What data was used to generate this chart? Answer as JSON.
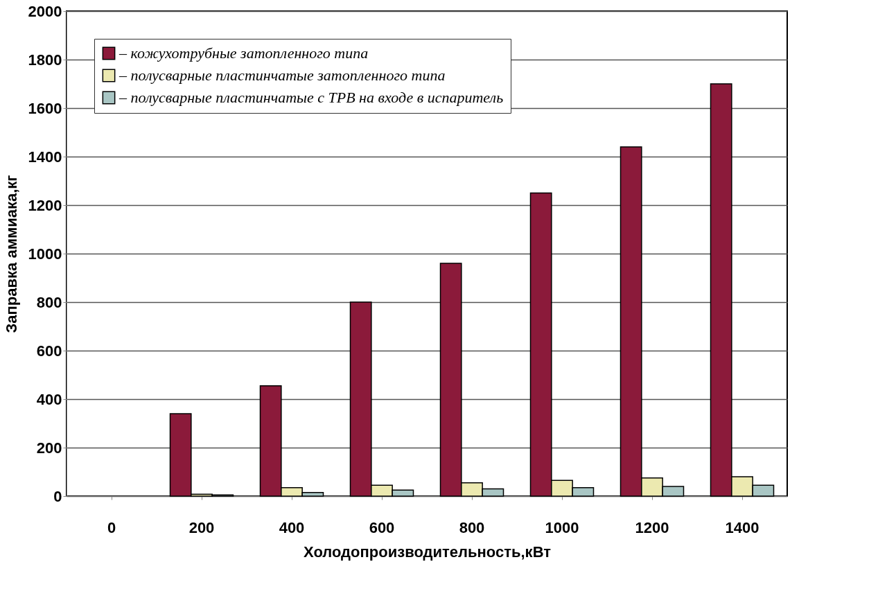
{
  "chart_data": {
    "type": "bar",
    "xlabel": "Холодопроизводительность,кВт",
    "ylabel": "Заправка аммиака,кг",
    "categories": [
      "0",
      "200",
      "400",
      "600",
      "800",
      "1000",
      "1200",
      "1400"
    ],
    "series": [
      {
        "name": "– кожухотрубные затопленного типа",
        "color": "#8b1a3a",
        "values": [
          null,
          340,
          455,
          800,
          960,
          1250,
          1440,
          1700
        ]
      },
      {
        "name": "– полусварные пластинчатые затопленного типа",
        "color": "#ece9b0",
        "values": [
          null,
          8,
          35,
          45,
          55,
          65,
          75,
          80
        ]
      },
      {
        "name": "– полусварные пластинчатые с ТРВ на входе в испаритель",
        "color": "#a9c6c4",
        "values": [
          null,
          5,
          15,
          25,
          30,
          35,
          40,
          45
        ]
      }
    ],
    "ylim": [
      0,
      2000
    ],
    "yticks": [
      0,
      200,
      400,
      600,
      800,
      1000,
      1200,
      1400,
      1600,
      1800,
      2000
    ],
    "grid": "y",
    "legend": "top left"
  }
}
